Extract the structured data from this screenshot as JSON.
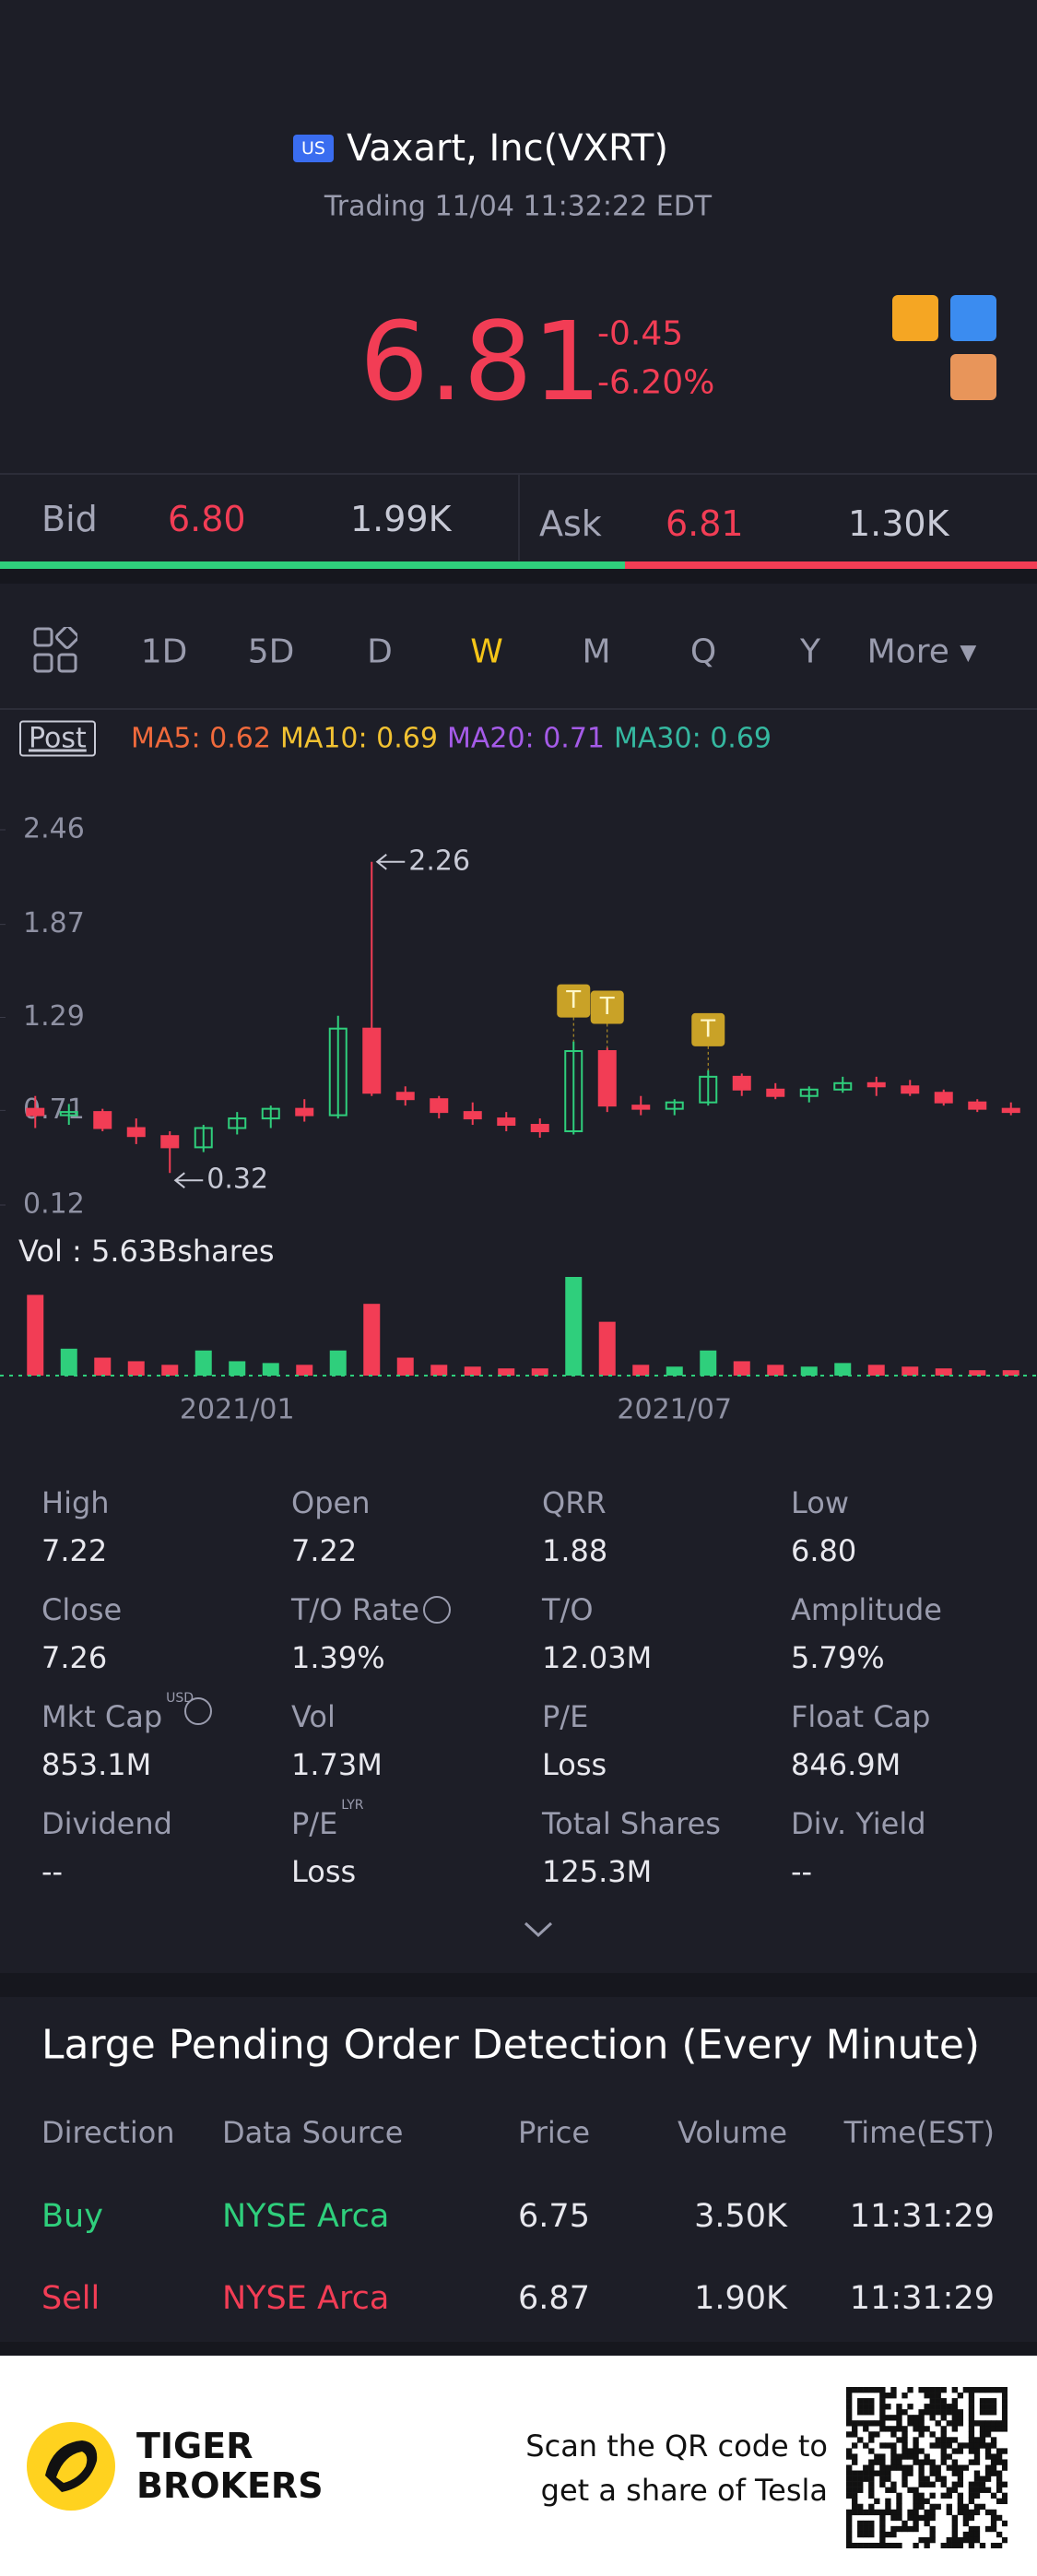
{
  "header": {
    "market": "US",
    "title": "Vaxart, Inc(VXRT)",
    "status": "Trading 11/04 11:32:22 EDT"
  },
  "quote": {
    "price": "6.81",
    "change": "-0.45",
    "change_pct": "-6.20%"
  },
  "order_book": {
    "bid_label": "Bid",
    "bid_price": "6.80",
    "bid_size": "1.99K",
    "ask_label": "Ask",
    "ask_price": "6.81",
    "ask_size": "1.30K"
  },
  "periods": [
    {
      "label": "1D"
    },
    {
      "label": "5D"
    },
    {
      "label": "D"
    },
    {
      "label": "W",
      "active": true
    },
    {
      "label": "M"
    },
    {
      "label": "Q"
    },
    {
      "label": "Y"
    },
    {
      "label": "More ▾"
    }
  ],
  "indicators": {
    "session": "Post",
    "items": [
      {
        "text": "MA5: 0.62",
        "color": "#f06a3c"
      },
      {
        "text": "MA10: 0.69",
        "color": "#f2c232"
      },
      {
        "text": "MA20: 0.71",
        "color": "#a55be8"
      },
      {
        "text": "MA30: 0.69",
        "color": "#35b8a0"
      }
    ]
  },
  "chart_data": {
    "type": "candlestick",
    "ylim": [
      0.12,
      2.46
    ],
    "yticks": [
      2.46,
      1.87,
      1.29,
      0.71,
      0.12
    ],
    "up_color": "#2fcf7c",
    "down_color": "#f23d55",
    "open": [
      0.72,
      0.68,
      0.7,
      0.6,
      0.55,
      0.48,
      0.6,
      0.66,
      0.72,
      0.68,
      1.22,
      0.82,
      0.78,
      0.7,
      0.66,
      0.62,
      0.58,
      1.08,
      0.74,
      0.72,
      0.76,
      0.92,
      0.84,
      0.8,
      0.84,
      0.88,
      0.86,
      0.82,
      0.76,
      0.72
    ],
    "high": [
      0.8,
      0.75,
      0.72,
      0.66,
      0.58,
      0.62,
      0.7,
      0.74,
      0.78,
      1.3,
      2.26,
      0.86,
      0.8,
      0.76,
      0.7,
      0.66,
      1.14,
      1.1,
      0.8,
      0.78,
      0.96,
      0.94,
      0.88,
      0.86,
      0.92,
      0.92,
      0.9,
      0.84,
      0.78,
      0.76
    ],
    "low": [
      0.6,
      0.62,
      0.58,
      0.5,
      0.32,
      0.45,
      0.56,
      0.6,
      0.64,
      0.66,
      0.8,
      0.74,
      0.66,
      0.62,
      0.58,
      0.54,
      0.56,
      0.7,
      0.68,
      0.68,
      0.74,
      0.8,
      0.78,
      0.76,
      0.82,
      0.8,
      0.8,
      0.74,
      0.7,
      0.68
    ],
    "close": [
      0.68,
      0.7,
      0.6,
      0.55,
      0.48,
      0.6,
      0.66,
      0.72,
      0.68,
      1.22,
      0.82,
      0.78,
      0.7,
      0.66,
      0.62,
      0.58,
      1.08,
      0.74,
      0.72,
      0.76,
      0.92,
      0.84,
      0.8,
      0.84,
      0.88,
      0.86,
      0.82,
      0.76,
      0.72,
      0.7
    ],
    "markers": [
      null,
      null,
      null,
      null,
      null,
      null,
      null,
      null,
      null,
      null,
      null,
      null,
      null,
      null,
      null,
      null,
      "T",
      "T",
      null,
      null,
      "T",
      null,
      null,
      null,
      null,
      null,
      null,
      null,
      null,
      null
    ],
    "volume_label": "Vol  : 5.63Bshares",
    "volume": [
      45,
      15,
      10,
      8,
      6,
      14,
      8,
      7,
      6,
      14,
      40,
      10,
      6,
      5,
      4,
      4,
      55,
      30,
      6,
      5,
      14,
      8,
      6,
      5,
      7,
      6,
      5,
      4,
      3,
      3
    ],
    "x_labels": [
      null,
      null,
      null,
      null,
      null,
      null,
      "2021/01",
      null,
      null,
      null,
      null,
      null,
      null,
      null,
      null,
      null,
      null,
      null,
      null,
      "2021/07",
      null,
      null,
      null,
      null,
      null,
      null,
      null,
      null,
      null,
      null
    ]
  },
  "stats": [
    {
      "label": "High",
      "value": "7.22"
    },
    {
      "label": "Open",
      "value": "7.22"
    },
    {
      "label": "QRR",
      "value": "1.88"
    },
    {
      "label": "Low",
      "value": "6.80"
    },
    {
      "label": "Close",
      "value": "7.26"
    },
    {
      "label": "T/O Rate",
      "value": "1.39%",
      "info": true
    },
    {
      "label": "T/O",
      "value": "12.03M"
    },
    {
      "label": "Amplitude",
      "value": "5.79%"
    },
    {
      "label": "Mkt Cap",
      "note": "USD",
      "value": "853.1M",
      "info": true
    },
    {
      "label": "Vol",
      "value": "1.73M"
    },
    {
      "label": "P/E",
      "value": "Loss"
    },
    {
      "label": "Float Cap",
      "value": "846.9M"
    },
    {
      "label": "Dividend",
      "value": "--"
    },
    {
      "label": "P/E",
      "note": "LYR",
      "value": "Loss"
    },
    {
      "label": "Total Shares",
      "value": "125.3M"
    },
    {
      "label": "Div. Yield",
      "value": "--"
    }
  ],
  "orders": {
    "title": "Large Pending Order Detection (Every Minute)",
    "headers": [
      "Direction",
      "Data Source",
      "Price",
      "Volume",
      "Time(EST)"
    ],
    "rows": [
      [
        "Buy",
        "NYSE Arca",
        "6.75",
        "3.50K",
        "11:31:29"
      ],
      [
        "Sell",
        "NYSE Arca",
        "6.87",
        "1.90K",
        "11:31:29"
      ]
    ]
  },
  "footer": {
    "brand": [
      "TIGER",
      "BROKERS"
    ],
    "promo": [
      "Scan the QR code to",
      "get a share of Tesla"
    ]
  }
}
